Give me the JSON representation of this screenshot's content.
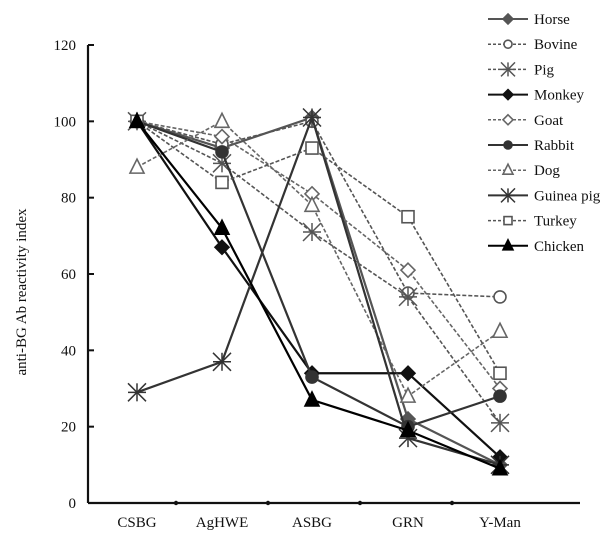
{
  "chart_data": {
    "type": "line",
    "categories": [
      "CSBG",
      "AgHWE",
      "ASBG",
      "GRN",
      "Y-Man"
    ],
    "ylabel": "anti-BG Ab reactivity index",
    "xlabel": "",
    "ylim": [
      0,
      120
    ],
    "yticks": [
      0,
      20,
      40,
      60,
      80,
      100,
      120
    ],
    "grid": false,
    "legend_position": "top-right",
    "series": [
      {
        "name": "Horse",
        "marker": "diamond-filled",
        "line": "solid",
        "color": "#555555",
        "values": [
          100,
          93,
          101,
          22,
          10
        ]
      },
      {
        "name": "Bovine",
        "marker": "circle-open",
        "line": "dashed",
        "color": "#555555",
        "values": [
          100,
          94,
          100,
          55,
          54
        ]
      },
      {
        "name": "Pig",
        "marker": "asterisk",
        "line": "dashed",
        "color": "#555555",
        "values": [
          100,
          89,
          71,
          54,
          21
        ]
      },
      {
        "name": "Monkey",
        "marker": "diamond-filled",
        "line": "solid",
        "color": "#111111",
        "values": [
          100,
          67,
          34,
          34,
          12
        ]
      },
      {
        "name": "Goat",
        "marker": "diamond-open",
        "line": "dashed",
        "color": "#666666",
        "values": [
          100,
          96,
          81,
          61,
          30
        ]
      },
      {
        "name": "Rabbit",
        "marker": "circle-filled",
        "line": "solid",
        "color": "#333333",
        "values": [
          100,
          92,
          33,
          20,
          28
        ]
      },
      {
        "name": "Dog",
        "marker": "triangle-open",
        "line": "dashed",
        "color": "#666666",
        "values": [
          88,
          100,
          78,
          28,
          45
        ]
      },
      {
        "name": "Guinea pig",
        "marker": "asterisk",
        "line": "solid",
        "color": "#333333",
        "values": [
          29,
          37,
          101,
          17,
          10
        ]
      },
      {
        "name": "Turkey",
        "marker": "square-open",
        "line": "dashed",
        "color": "#555555",
        "values": [
          100,
          84,
          93,
          75,
          34
        ]
      },
      {
        "name": "Chicken",
        "marker": "triangle-filled",
        "line": "solid",
        "color": "#000000",
        "values": [
          100,
          72,
          27,
          19,
          9
        ]
      }
    ]
  }
}
